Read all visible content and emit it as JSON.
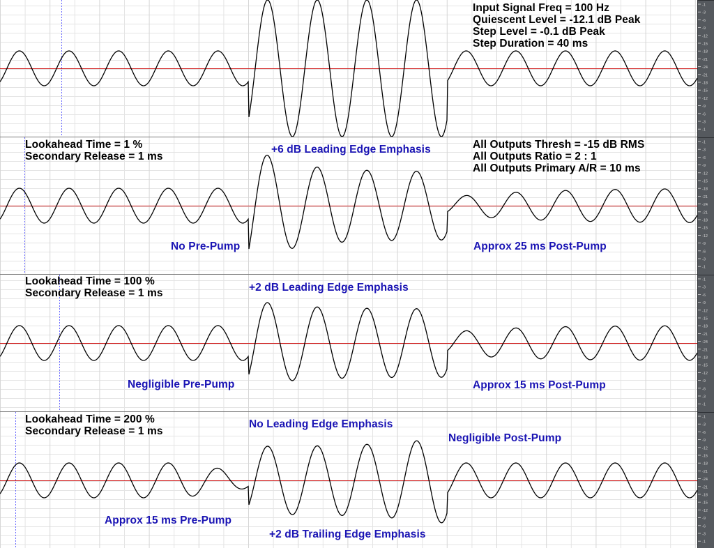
{
  "colors": {
    "background": "#ffffff",
    "grid": "#e4e4e4",
    "grid_major": "#d6d6d6",
    "wave": "#000000",
    "zero_line": "#d01818",
    "marker": "#6a6aff",
    "label_black": "#000000",
    "label_blue": "#1a14b4",
    "ruler_bg": "#55595e",
    "ruler_text": "#d8d8d8"
  },
  "ruler": {
    "scale_labels": [
      "-1",
      "-3",
      "-6",
      "-9",
      "-12",
      "-15",
      "-18",
      "-21",
      "-24",
      "-21",
      "-18",
      "-15",
      "-12",
      "-9",
      "-6",
      "-3",
      "-1"
    ]
  },
  "tracks": [
    {
      "id": "input",
      "labels": {
        "input_freq": "Input Signal Freq = 100 Hz",
        "quiescent": "Quiescent Level = -12.1 dB Peak",
        "step_level": "Step Level = -0.1 dB Peak",
        "step_duration": "Step Duration = 40 ms"
      }
    },
    {
      "id": "lookahead-1",
      "labels": {
        "lookahead": "Lookahead Time = 1 %",
        "secondary": "Secondary Release = 1 ms",
        "leading": "+6 dB Leading Edge Emphasis",
        "thresh": "All Outputs Thresh = -15 dB RMS",
        "ratio": "All Outputs Ratio = 2 : 1",
        "ar": "All Outputs Primary A/R = 10 ms",
        "prepump": "No Pre-Pump",
        "postpump": "Approx 25 ms Post-Pump"
      }
    },
    {
      "id": "lookahead-100",
      "labels": {
        "lookahead": "Lookahead Time = 100 %",
        "secondary": "Secondary Release = 1 ms",
        "leading": "+2 dB Leading Edge Emphasis",
        "prepump": "Negligible Pre-Pump",
        "postpump": "Approx 15 ms Post-Pump"
      }
    },
    {
      "id": "lookahead-200",
      "labels": {
        "lookahead": "Lookahead Time = 200 %",
        "secondary": "Secondary Release = 1 ms",
        "leading": "No Leading Edge Emphasis",
        "postpump": "Negligible Post-Pump",
        "prepump": "Approx 15 ms Pre-Pump",
        "trailing": "+2 dB Trailing Edge Emphasis"
      }
    }
  ]
}
